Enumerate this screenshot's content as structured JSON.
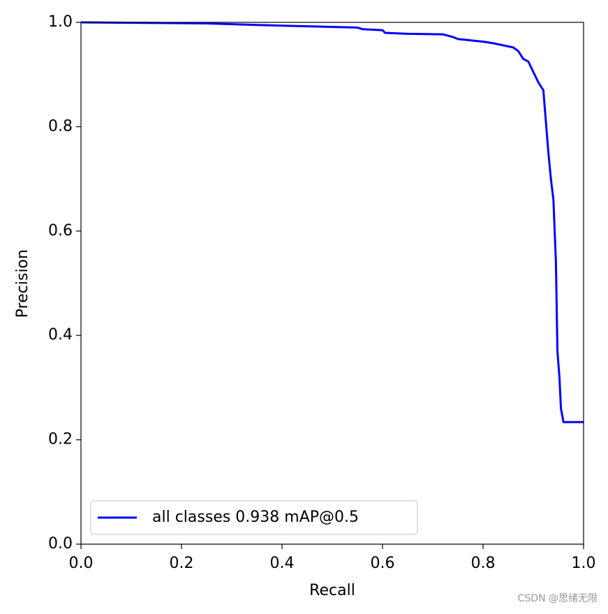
{
  "chart_data": {
    "type": "line",
    "xlabel": "Recall",
    "ylabel": "Precision",
    "x": [
      0,
      0.25,
      0.35,
      0.43,
      0.55,
      0.56,
      0.6,
      0.605,
      0.65,
      0.72,
      0.74,
      0.75,
      0.8,
      0.82,
      0.86,
      0.87,
      0.88,
      0.89,
      0.9,
      0.91,
      0.92,
      0.925,
      0.93,
      0.935,
      0.94,
      0.945,
      0.948,
      0.952,
      0.955,
      0.96,
      1.0
    ],
    "series": [
      {
        "name": "all classes 0.938 mAP@0.5",
        "color": "#0000ff",
        "values": [
          1.0,
          0.998,
          0.995,
          0.993,
          0.99,
          0.987,
          0.985,
          0.98,
          0.978,
          0.977,
          0.972,
          0.968,
          0.963,
          0.96,
          0.952,
          0.945,
          0.93,
          0.925,
          0.905,
          0.885,
          0.87,
          0.81,
          0.75,
          0.7,
          0.66,
          0.54,
          0.37,
          0.32,
          0.26,
          0.234,
          0.234
        ]
      }
    ],
    "xlim": [
      0,
      1
    ],
    "ylim": [
      0,
      1
    ],
    "xticks": [
      {
        "value": 0,
        "label": "0.0"
      },
      0.2,
      0.4,
      0.6,
      0.8,
      {
        "value": 1,
        "label": "1.0"
      }
    ],
    "yticks": [
      {
        "value": 0,
        "label": "0.0"
      },
      0.2,
      0.4,
      0.6,
      0.8,
      {
        "value": 1,
        "label": "1.0"
      }
    ],
    "legend": "lower left",
    "grid": false
  },
  "watermark": "CSDN @思绪无限"
}
